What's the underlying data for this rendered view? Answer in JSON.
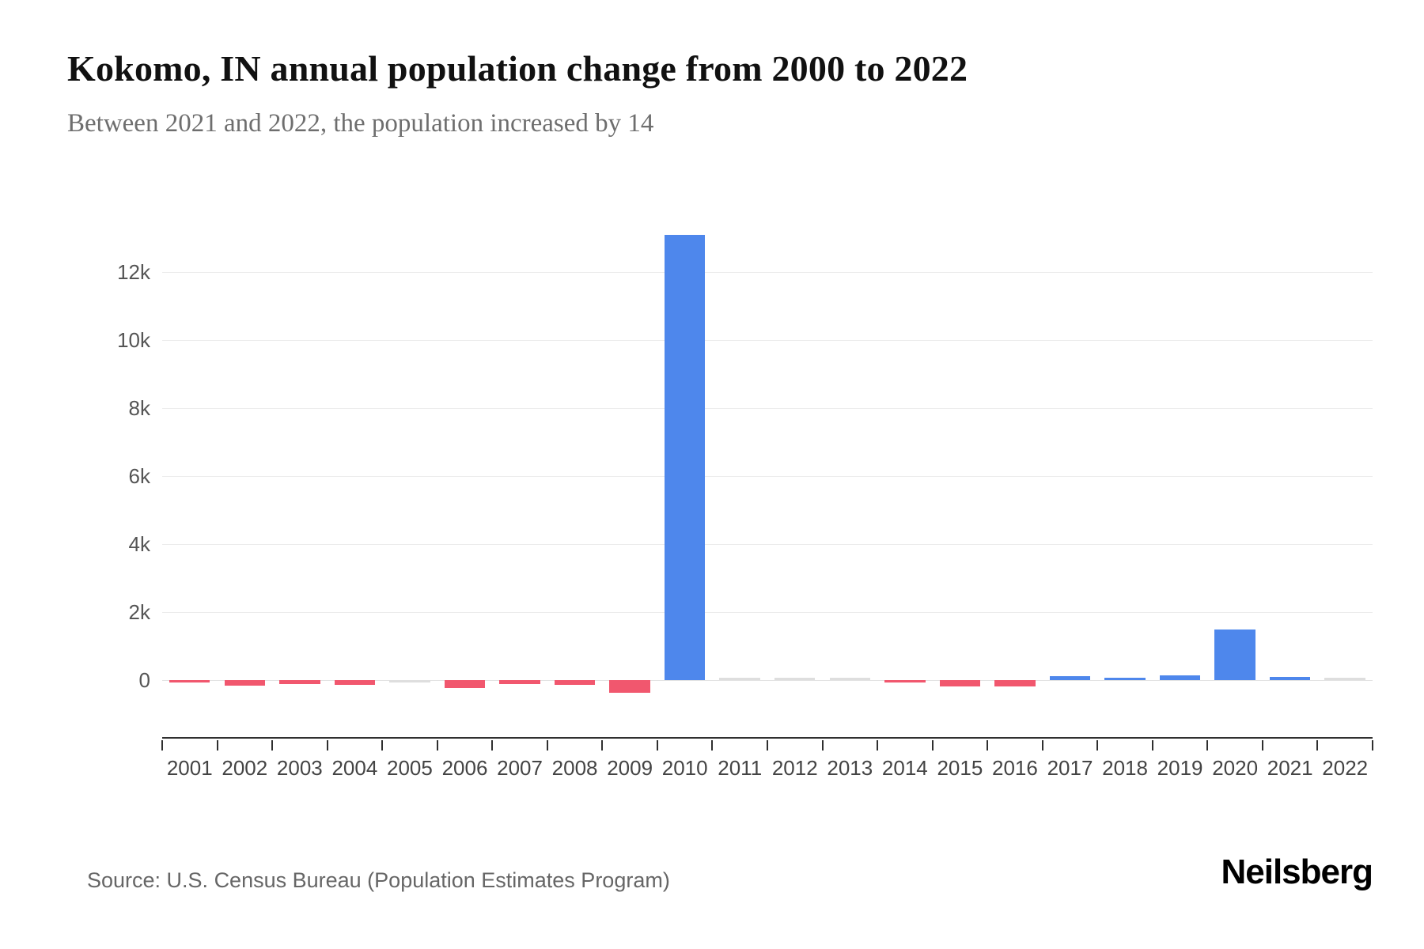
{
  "header": {
    "title": "Kokomo, IN annual population change from 2000 to 2022",
    "subtitle": "Between 2021 and 2022, the population increased by 14"
  },
  "footer": {
    "source": "Source: U.S. Census Bureau (Population Estimates Program)",
    "brand": "Neilsberg"
  },
  "chart_data": {
    "type": "bar",
    "title": "Kokomo, IN annual population change from 2000 to 2022",
    "subtitle": "Between 2021 and 2022, the population increased by 14",
    "categories": [
      "2001",
      "2002",
      "2003",
      "2004",
      "2005",
      "2006",
      "2007",
      "2008",
      "2009",
      "2010",
      "2011",
      "2012",
      "2013",
      "2014",
      "2015",
      "2016",
      "2017",
      "2018",
      "2019",
      "2020",
      "2021",
      "2022"
    ],
    "values": [
      -60,
      -170,
      -110,
      -130,
      -15,
      -230,
      -110,
      -130,
      -380,
      13100,
      25,
      5,
      8,
      -60,
      -190,
      -190,
      110,
      60,
      130,
      1480,
      80,
      14
    ],
    "xlabel": "",
    "ylabel": "",
    "ylim": [
      -700,
      13500
    ],
    "yticks": [
      0,
      2000,
      4000,
      6000,
      8000,
      10000,
      12000
    ],
    "ytick_labels": [
      "0",
      "2k",
      "4k",
      "6k",
      "8k",
      "10k",
      "12k"
    ],
    "grid": true,
    "legend": false,
    "colors": {
      "positive": "#4e87ec",
      "negative": "#f1576e",
      "neutral": "#dedede"
    }
  }
}
